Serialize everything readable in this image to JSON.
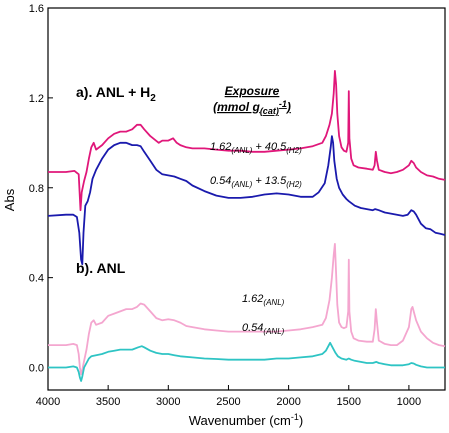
{
  "chart_data": {
    "type": "line",
    "xlabel": "Wavenumber (cm",
    "xlabel_sup": "-1",
    "xlabel_tail": ")",
    "ylabel": "Abs",
    "xlim": [
      4000,
      700
    ],
    "ylim": [
      -0.1,
      1.6
    ],
    "x_ticks": [
      4000,
      3500,
      3000,
      2500,
      2000,
      1500,
      1000
    ],
    "x_tick_labels": [
      "4000",
      "3500",
      "3000",
      "2500",
      "2000",
      "1500",
      "1000"
    ],
    "y_ticks": [
      0.0,
      0.4,
      0.8,
      1.2,
      1.6
    ],
    "y_tick_labels": [
      "0.0",
      "0.4",
      "0.8",
      "1.2",
      "1.6"
    ],
    "grid": false,
    "panels": [
      {
        "label": "a). ANL + H",
        "sub": "2"
      },
      {
        "label": "b). ANL",
        "sub": ""
      }
    ],
    "legend_title": {
      "line1": "Exposure",
      "line2": "(mmol g",
      "line2_sub": "(cat)",
      "line2_sup": "-1",
      "line2_tail": ")"
    },
    "series": [
      {
        "color": "#e0177a",
        "label_parts": [
          "1.62",
          "(ANL)",
          " + 40.5",
          "(H2)"
        ],
        "points": [
          [
            4000,
            0.87
          ],
          [
            3850,
            0.87
          ],
          [
            3780,
            0.875
          ],
          [
            3745,
            0.86
          ],
          [
            3730,
            0.7
          ],
          [
            3720,
            0.78
          ],
          [
            3700,
            0.83
          ],
          [
            3680,
            0.87
          ],
          [
            3660,
            0.93
          ],
          [
            3640,
            0.98
          ],
          [
            3620,
            1.0
          ],
          [
            3600,
            0.97
          ],
          [
            3550,
            0.99
          ],
          [
            3500,
            1.02
          ],
          [
            3450,
            1.04
          ],
          [
            3400,
            1.05
          ],
          [
            3350,
            1.05
          ],
          [
            3300,
            1.06
          ],
          [
            3260,
            1.08
          ],
          [
            3230,
            1.08
          ],
          [
            3200,
            1.06
          ],
          [
            3150,
            1.03
          ],
          [
            3080,
            1.0
          ],
          [
            3050,
            1.01
          ],
          [
            3000,
            1.01
          ],
          [
            2960,
            1.02
          ],
          [
            2930,
            1.0
          ],
          [
            2900,
            0.99
          ],
          [
            2850,
            0.98
          ],
          [
            2800,
            0.975
          ],
          [
            2700,
            0.975
          ],
          [
            2600,
            0.97
          ],
          [
            2500,
            0.965
          ],
          [
            2400,
            0.965
          ],
          [
            2300,
            0.96
          ],
          [
            2200,
            0.96
          ],
          [
            2100,
            0.965
          ],
          [
            2000,
            0.97
          ],
          [
            1900,
            0.975
          ],
          [
            1800,
            0.985
          ],
          [
            1720,
            1.0
          ],
          [
            1690,
            1.03
          ],
          [
            1660,
            1.08
          ],
          [
            1640,
            1.13
          ],
          [
            1625,
            1.22
          ],
          [
            1615,
            1.32
          ],
          [
            1605,
            1.26
          ],
          [
            1595,
            1.13
          ],
          [
            1580,
            1.03
          ],
          [
            1560,
            0.98
          ],
          [
            1540,
            0.965
          ],
          [
            1520,
            0.96
          ],
          [
            1505,
            1.0
          ],
          [
            1500,
            1.23
          ],
          [
            1495,
            1.02
          ],
          [
            1480,
            0.93
          ],
          [
            1460,
            0.9
          ],
          [
            1420,
            0.89
          ],
          [
            1350,
            0.885
          ],
          [
            1300,
            0.88
          ],
          [
            1285,
            0.9
          ],
          [
            1275,
            0.96
          ],
          [
            1265,
            0.92
          ],
          [
            1250,
            0.88
          ],
          [
            1200,
            0.87
          ],
          [
            1150,
            0.865
          ],
          [
            1100,
            0.87
          ],
          [
            1050,
            0.88
          ],
          [
            1000,
            0.9
          ],
          [
            980,
            0.92
          ],
          [
            960,
            0.91
          ],
          [
            940,
            0.89
          ],
          [
            900,
            0.87
          ],
          [
            850,
            0.855
          ],
          [
            800,
            0.85
          ],
          [
            750,
            0.84
          ],
          [
            700,
            0.835
          ]
        ]
      },
      {
        "color": "#1a1aad",
        "label_parts": [
          "0.54",
          "(ANL)",
          " + 13.5",
          "(H2)"
        ],
        "points": [
          [
            4000,
            0.675
          ],
          [
            3850,
            0.68
          ],
          [
            3790,
            0.68
          ],
          [
            3760,
            0.67
          ],
          [
            3740,
            0.6
          ],
          [
            3725,
            0.48
          ],
          [
            3715,
            0.46
          ],
          [
            3705,
            0.6
          ],
          [
            3690,
            0.72
          ],
          [
            3670,
            0.74
          ],
          [
            3650,
            0.78
          ],
          [
            3630,
            0.84
          ],
          [
            3600,
            0.88
          ],
          [
            3550,
            0.93
          ],
          [
            3500,
            0.97
          ],
          [
            3450,
            0.99
          ],
          [
            3400,
            1.0
          ],
          [
            3350,
            1.0
          ],
          [
            3300,
            0.99
          ],
          [
            3260,
            0.99
          ],
          [
            3230,
            0.985
          ],
          [
            3200,
            0.96
          ],
          [
            3150,
            0.92
          ],
          [
            3100,
            0.88
          ],
          [
            3050,
            0.86
          ],
          [
            3000,
            0.855
          ],
          [
            2950,
            0.85
          ],
          [
            2900,
            0.84
          ],
          [
            2850,
            0.83
          ],
          [
            2800,
            0.81
          ],
          [
            2700,
            0.785
          ],
          [
            2600,
            0.765
          ],
          [
            2500,
            0.755
          ],
          [
            2400,
            0.755
          ],
          [
            2300,
            0.76
          ],
          [
            2200,
            0.77
          ],
          [
            2100,
            0.775
          ],
          [
            2000,
            0.77
          ],
          [
            1900,
            0.76
          ],
          [
            1800,
            0.76
          ],
          [
            1750,
            0.78
          ],
          [
            1700,
            0.82
          ],
          [
            1670,
            0.9
          ],
          [
            1650,
            0.98
          ],
          [
            1640,
            1.03
          ],
          [
            1630,
            1.0
          ],
          [
            1620,
            0.92
          ],
          [
            1600,
            0.84
          ],
          [
            1580,
            0.8
          ],
          [
            1550,
            0.77
          ],
          [
            1520,
            0.75
          ],
          [
            1500,
            0.74
          ],
          [
            1450,
            0.72
          ],
          [
            1400,
            0.71
          ],
          [
            1350,
            0.705
          ],
          [
            1300,
            0.7
          ],
          [
            1280,
            0.705
          ],
          [
            1250,
            0.7
          ],
          [
            1200,
            0.69
          ],
          [
            1150,
            0.685
          ],
          [
            1100,
            0.68
          ],
          [
            1050,
            0.675
          ],
          [
            1010,
            0.68
          ],
          [
            980,
            0.7
          ],
          [
            960,
            0.695
          ],
          [
            940,
            0.68
          ],
          [
            900,
            0.64
          ],
          [
            860,
            0.62
          ],
          [
            820,
            0.615
          ],
          [
            780,
            0.6
          ],
          [
            740,
            0.595
          ],
          [
            700,
            0.59
          ]
        ]
      },
      {
        "color": "#f4a6cf",
        "label_parts": [
          "1.62",
          "(ANL)"
        ],
        "points": [
          [
            4000,
            0.1
          ],
          [
            3850,
            0.1
          ],
          [
            3790,
            0.105
          ],
          [
            3760,
            0.1
          ],
          [
            3745,
            0.06
          ],
          [
            3735,
            0.0
          ],
          [
            3725,
            -0.03
          ],
          [
            3715,
            -0.01
          ],
          [
            3700,
            0.03
          ],
          [
            3680,
            0.08
          ],
          [
            3660,
            0.15
          ],
          [
            3640,
            0.2
          ],
          [
            3620,
            0.21
          ],
          [
            3600,
            0.19
          ],
          [
            3550,
            0.2
          ],
          [
            3500,
            0.23
          ],
          [
            3450,
            0.24
          ],
          [
            3400,
            0.25
          ],
          [
            3350,
            0.26
          ],
          [
            3300,
            0.26
          ],
          [
            3260,
            0.27
          ],
          [
            3230,
            0.285
          ],
          [
            3200,
            0.28
          ],
          [
            3150,
            0.25
          ],
          [
            3100,
            0.22
          ],
          [
            3050,
            0.21
          ],
          [
            3000,
            0.215
          ],
          [
            2950,
            0.21
          ],
          [
            2900,
            0.2
          ],
          [
            2850,
            0.185
          ],
          [
            2800,
            0.18
          ],
          [
            2700,
            0.17
          ],
          [
            2600,
            0.165
          ],
          [
            2500,
            0.16
          ],
          [
            2400,
            0.16
          ],
          [
            2300,
            0.16
          ],
          [
            2200,
            0.16
          ],
          [
            2100,
            0.16
          ],
          [
            2000,
            0.165
          ],
          [
            1900,
            0.17
          ],
          [
            1800,
            0.18
          ],
          [
            1720,
            0.19
          ],
          [
            1690,
            0.22
          ],
          [
            1660,
            0.3
          ],
          [
            1640,
            0.4
          ],
          [
            1625,
            0.5
          ],
          [
            1615,
            0.55
          ],
          [
            1605,
            0.42
          ],
          [
            1595,
            0.28
          ],
          [
            1580,
            0.2
          ],
          [
            1560,
            0.18
          ],
          [
            1540,
            0.175
          ],
          [
            1520,
            0.18
          ],
          [
            1505,
            0.25
          ],
          [
            1500,
            0.48
          ],
          [
            1495,
            0.25
          ],
          [
            1480,
            0.16
          ],
          [
            1460,
            0.13
          ],
          [
            1420,
            0.12
          ],
          [
            1350,
            0.115
          ],
          [
            1300,
            0.115
          ],
          [
            1285,
            0.17
          ],
          [
            1275,
            0.26
          ],
          [
            1265,
            0.2
          ],
          [
            1250,
            0.12
          ],
          [
            1200,
            0.105
          ],
          [
            1150,
            0.1
          ],
          [
            1100,
            0.1
          ],
          [
            1050,
            0.12
          ],
          [
            1000,
            0.18
          ],
          [
            980,
            0.26
          ],
          [
            970,
            0.27
          ],
          [
            960,
            0.25
          ],
          [
            940,
            0.21
          ],
          [
            900,
            0.16
          ],
          [
            850,
            0.13
          ],
          [
            800,
            0.11
          ],
          [
            750,
            0.1
          ],
          [
            700,
            0.095
          ]
        ]
      },
      {
        "color": "#2ec4c4",
        "label_parts": [
          "0.54",
          "(ANL)"
        ],
        "points": [
          [
            4000,
            0.0
          ],
          [
            3850,
            0.0
          ],
          [
            3790,
            0.005
          ],
          [
            3760,
            0.0
          ],
          [
            3745,
            -0.02
          ],
          [
            3735,
            -0.045
          ],
          [
            3725,
            -0.06
          ],
          [
            3715,
            -0.04
          ],
          [
            3700,
            0.0
          ],
          [
            3680,
            0.02
          ],
          [
            3660,
            0.04
          ],
          [
            3640,
            0.05
          ],
          [
            3600,
            0.055
          ],
          [
            3550,
            0.06
          ],
          [
            3500,
            0.07
          ],
          [
            3450,
            0.075
          ],
          [
            3400,
            0.08
          ],
          [
            3350,
            0.08
          ],
          [
            3300,
            0.08
          ],
          [
            3250,
            0.09
          ],
          [
            3220,
            0.095
          ],
          [
            3200,
            0.09
          ],
          [
            3150,
            0.075
          ],
          [
            3100,
            0.065
          ],
          [
            3050,
            0.06
          ],
          [
            3000,
            0.06
          ],
          [
            2950,
            0.055
          ],
          [
            2900,
            0.05
          ],
          [
            2800,
            0.045
          ],
          [
            2700,
            0.04
          ],
          [
            2600,
            0.038
          ],
          [
            2500,
            0.035
          ],
          [
            2400,
            0.035
          ],
          [
            2300,
            0.035
          ],
          [
            2200,
            0.035
          ],
          [
            2100,
            0.04
          ],
          [
            2000,
            0.04
          ],
          [
            1900,
            0.045
          ],
          [
            1800,
            0.05
          ],
          [
            1720,
            0.06
          ],
          [
            1690,
            0.075
          ],
          [
            1670,
            0.095
          ],
          [
            1655,
            0.11
          ],
          [
            1645,
            0.1
          ],
          [
            1630,
            0.085
          ],
          [
            1610,
            0.065
          ],
          [
            1590,
            0.05
          ],
          [
            1560,
            0.04
          ],
          [
            1520,
            0.035
          ],
          [
            1500,
            0.04
          ],
          [
            1480,
            0.035
          ],
          [
            1450,
            0.03
          ],
          [
            1400,
            0.025
          ],
          [
            1350,
            0.02
          ],
          [
            1300,
            0.02
          ],
          [
            1270,
            0.025
          ],
          [
            1250,
            0.02
          ],
          [
            1200,
            0.015
          ],
          [
            1150,
            0.01
          ],
          [
            1100,
            0.01
          ],
          [
            1050,
            0.01
          ],
          [
            1000,
            0.015
          ],
          [
            980,
            0.02
          ],
          [
            960,
            0.018
          ],
          [
            940,
            0.012
          ],
          [
            900,
            0.005
          ],
          [
            850,
            0.0
          ],
          [
            800,
            0.0
          ],
          [
            750,
            0.0
          ],
          [
            700,
            0.0
          ]
        ]
      }
    ]
  }
}
